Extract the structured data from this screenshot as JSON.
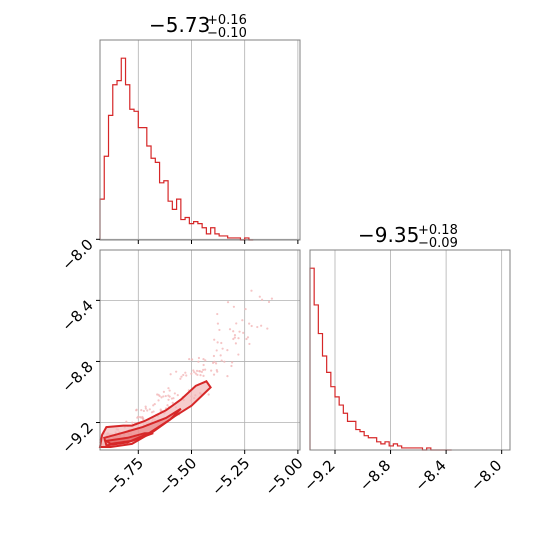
{
  "colors": {
    "series": "#d62728",
    "fill_light": "#f2b6b8",
    "fill_mid": "#e97b7d",
    "grid": "#b0b0b0",
    "frame": "#808080"
  },
  "chart_data": [
    {
      "type": "histogram",
      "panel": "top-left",
      "title": {
        "value": "−5.73",
        "plus": "+0.16",
        "minus": "−0.10"
      },
      "x_range": [
        -5.93,
        -4.99
      ],
      "bins": [
        -5.93,
        -5.91,
        -5.89,
        -5.87,
        -5.85,
        -5.83,
        -5.81,
        -5.79,
        -5.77,
        -5.75,
        -5.73,
        -5.71,
        -5.69,
        -5.67,
        -5.65,
        -5.63,
        -5.61,
        -5.59,
        -5.57,
        -5.55,
        -5.53,
        -5.51,
        -5.49,
        -5.47,
        -5.45,
        -5.43,
        -5.41,
        -5.39,
        -5.37,
        -5.35,
        -5.33,
        -5.31,
        -5.29,
        -5.27,
        -5.25,
        -5.23,
        -5.21
      ],
      "counts": [
        20,
        41,
        61,
        76,
        78,
        89,
        76,
        64,
        63,
        55,
        55,
        46,
        40,
        38,
        28,
        29,
        19,
        15,
        20,
        10,
        11,
        8,
        9,
        8,
        6,
        3,
        6,
        3,
        2,
        2,
        1,
        1,
        1,
        0,
        1,
        0
      ],
      "xticks": [
        "−5.75",
        "−5.50",
        "−5.25",
        "−5.00"
      ],
      "xtick_values": [
        -5.75,
        -5.5,
        -5.25,
        -5.0
      ]
    },
    {
      "type": "scatter-contour",
      "panel": "bottom-left",
      "x_range": [
        -5.93,
        -4.99
      ],
      "y_range": [
        -9.38,
        -8.07
      ],
      "yticks": [
        "−8.0",
        "−8.4",
        "−8.8",
        "−9.2"
      ],
      "ytick_values": [
        -8.0,
        -8.4,
        -8.8,
        -9.2
      ],
      "xticks": [
        "−5.75",
        "−5.50",
        "−5.25",
        "−5.00"
      ],
      "xtick_values": [
        -5.75,
        -5.5,
        -5.25,
        -5.0
      ],
      "contours": {
        "outer": [
          [
            -5.92,
            -9.28
          ],
          [
            -5.9,
            -9.23
          ],
          [
            -5.82,
            -9.22
          ],
          [
            -5.78,
            -9.22
          ],
          [
            -5.72,
            -9.19
          ],
          [
            -5.62,
            -9.12
          ],
          [
            -5.55,
            -9.05
          ],
          [
            -5.48,
            -8.96
          ],
          [
            -5.43,
            -8.93
          ],
          [
            -5.41,
            -8.97
          ],
          [
            -5.5,
            -9.09
          ],
          [
            -5.58,
            -9.16
          ],
          [
            -5.68,
            -9.26
          ],
          [
            -5.78,
            -9.34
          ],
          [
            -5.88,
            -9.36
          ],
          [
            -5.93,
            -9.36
          ]
        ],
        "middle": [
          [
            -5.91,
            -9.3
          ],
          [
            -5.83,
            -9.27
          ],
          [
            -5.73,
            -9.23
          ],
          [
            -5.62,
            -9.17
          ],
          [
            -5.55,
            -9.11
          ],
          [
            -5.6,
            -9.18
          ],
          [
            -5.7,
            -9.27
          ],
          [
            -5.8,
            -9.33
          ],
          [
            -5.9,
            -9.35
          ]
        ],
        "inner": [
          [
            -5.9,
            -9.32
          ],
          [
            -5.8,
            -9.3
          ],
          [
            -5.72,
            -9.27
          ],
          [
            -5.68,
            -9.27
          ],
          [
            -5.78,
            -9.32
          ],
          [
            -5.88,
            -9.34
          ]
        ]
      },
      "cloud": {
        "center_curve": [
          [
            -5.92,
            -9.32
          ],
          [
            -5.8,
            -9.28
          ],
          [
            -5.7,
            -9.17
          ],
          [
            -5.6,
            -9.05
          ],
          [
            -5.5,
            -8.92
          ],
          [
            -5.4,
            -8.78
          ],
          [
            -5.3,
            -8.62
          ],
          [
            -5.2,
            -8.45
          ]
        ],
        "n_points": 260
      }
    },
    {
      "type": "histogram",
      "panel": "bottom-right",
      "title": {
        "value": "−9.35",
        "plus": "+0.18",
        "minus": "−0.09"
      },
      "x_range": [
        -9.38,
        -7.94
      ],
      "bins": [
        -9.38,
        -9.35,
        -9.32,
        -9.29,
        -9.26,
        -9.23,
        -9.2,
        -9.17,
        -9.14,
        -9.11,
        -9.08,
        -9.05,
        -9.02,
        -8.99,
        -8.96,
        -8.93,
        -8.9,
        -8.87,
        -8.84,
        -8.81,
        -8.78,
        -8.75,
        -8.72,
        -8.69,
        -8.66,
        -8.63,
        -8.6,
        -8.57,
        -8.54,
        -8.51,
        -8.48,
        -8.45,
        -8.42,
        -8.39,
        -8.36
      ],
      "counts": [
        89,
        71,
        57,
        46,
        38,
        31,
        26,
        22,
        18,
        14,
        14,
        10,
        9,
        7,
        6,
        6,
        4,
        3,
        4,
        2,
        3,
        2,
        1,
        1,
        1,
        1,
        1,
        0,
        1,
        0,
        0,
        0,
        0,
        0
      ],
      "xticks": [
        "−9.2",
        "−8.8",
        "−8.4",
        "−8.0"
      ],
      "xtick_values": [
        -9.2,
        -8.8,
        -8.4,
        -8.0
      ]
    }
  ]
}
